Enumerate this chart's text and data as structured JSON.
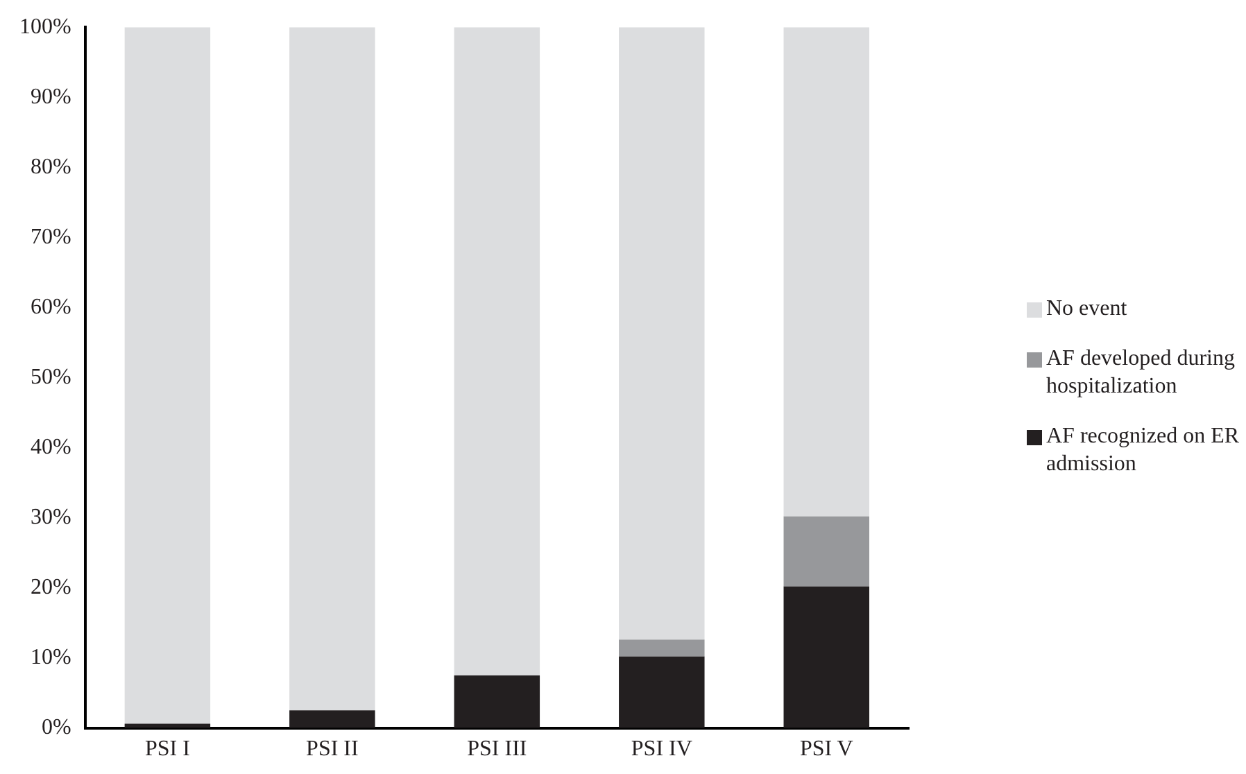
{
  "chart_data": {
    "type": "bar",
    "stacked": true,
    "categories": [
      "PSI I",
      "PSI II",
      "PSI III",
      "PSI IV",
      "PSI V"
    ],
    "series": [
      {
        "name": "AF recognized on ER admission",
        "color": "#231f20",
        "values": [
          0.6,
          2.5,
          7.5,
          10.2,
          20.2
        ]
      },
      {
        "name": "AF developed during hospitalization",
        "color": "#97989b",
        "values": [
          0,
          0,
          0,
          2.4,
          10
        ]
      },
      {
        "name": "No event",
        "color": "#dcdddf",
        "values": [
          99.4,
          97.5,
          92.5,
          87.4,
          69.8
        ]
      }
    ],
    "ylim": [
      0,
      100
    ],
    "yticks": [
      {
        "value": 0,
        "label": "0%"
      },
      {
        "value": 10,
        "label": "10%"
      },
      {
        "value": 20,
        "label": "20%"
      },
      {
        "value": 30,
        "label": "30%"
      },
      {
        "value": 40,
        "label": "40%"
      },
      {
        "value": 50,
        "label": "50%"
      },
      {
        "value": 60,
        "label": "60%"
      },
      {
        "value": 70,
        "label": "70%"
      },
      {
        "value": 80,
        "label": "80%"
      },
      {
        "value": 90,
        "label": "90%"
      },
      {
        "value": 100,
        "label": "100%"
      }
    ],
    "grid": false,
    "legend": "right"
  }
}
